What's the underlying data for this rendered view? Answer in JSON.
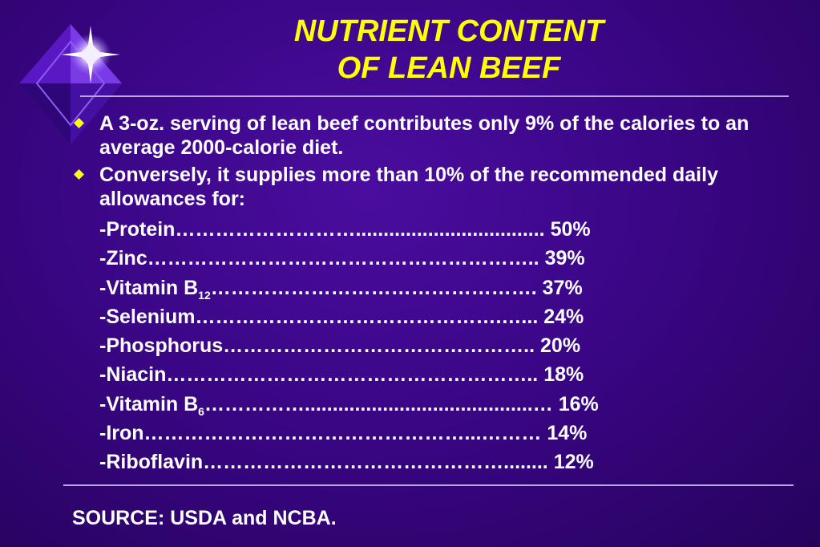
{
  "title": {
    "line1": "NUTRIENT CONTENT",
    "line2": "OF LEAN BEEF"
  },
  "colors": {
    "title": "#ffff00",
    "bullet": "#ffff00",
    "background": "#3a0686",
    "rule": "#b9a6e8"
  },
  "bullets": [
    {
      "icon": "diamond-bullet-icon",
      "text": "A 3-oz. serving of lean beef contributes only 9% of the calories to an average 2000-calorie diet."
    },
    {
      "icon": "diamond-bullet-icon",
      "text": "Conversely, it supplies more than 10% of the recommended daily allowances for:"
    }
  ],
  "nutrients": [
    {
      "name": "-Protein",
      "sub": "",
      "leader": "………………………..................................  ",
      "value": "50%"
    },
    {
      "name": "-Zinc",
      "sub": "",
      "leader": "…………………………………………………..  ",
      "value": "39%"
    },
    {
      "name": "-Vitamin B",
      "sub": "12",
      "leader": "………………………………………….  ",
      "value": "37%"
    },
    {
      "name": "-Selenium",
      "sub": "",
      "leader": "……………………………………….…...  ",
      "value": "24%"
    },
    {
      "name": "-Phosphorus",
      "sub": "",
      "leader": "………………………………………..   ",
      "value": "20%"
    },
    {
      "name": "-Niacin",
      "sub": "",
      "leader": "………………………………………………..  ",
      "value": "18%"
    },
    {
      "name": "-Vitamin B",
      "sub": "6",
      "leader": "…………….........................................…  ",
      "value": "16%"
    },
    {
      "name": "-Iron",
      "sub": "",
      "leader": "…………………………………………...……… ",
      "value": "14%"
    },
    {
      "name": "-Riboflavin",
      "sub": "",
      "leader": "………………………………………........ ",
      "value": "12%"
    }
  ],
  "source": "SOURCE:  USDA and NCBA."
}
